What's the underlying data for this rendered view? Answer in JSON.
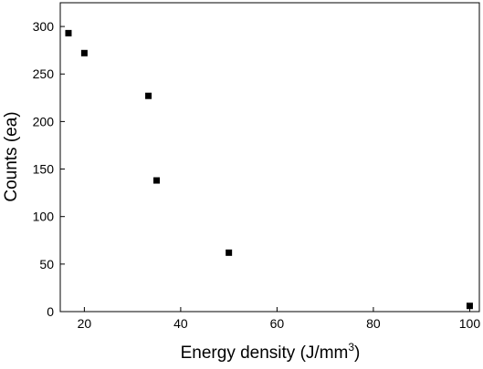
{
  "chart_data": {
    "type": "scatter",
    "title": "",
    "xlabel": "Energy density (J/mm",
    "xlabel_superscript": "3",
    "xlabel_suffix": ")",
    "ylabel": "Counts (ea)",
    "xlim": [
      15,
      102
    ],
    "ylim": [
      0,
      325
    ],
    "xticks": [
      20,
      40,
      60,
      80,
      100
    ],
    "yticks": [
      0,
      50,
      100,
      150,
      200,
      250,
      300
    ],
    "grid": false,
    "legend": "none",
    "marker": "square",
    "marker_color": "#000000",
    "series": [
      {
        "x": [
          16.7,
          20,
          33.3,
          35,
          50,
          100
        ],
        "y": [
          293,
          272,
          227,
          138,
          62,
          6
        ]
      }
    ]
  }
}
